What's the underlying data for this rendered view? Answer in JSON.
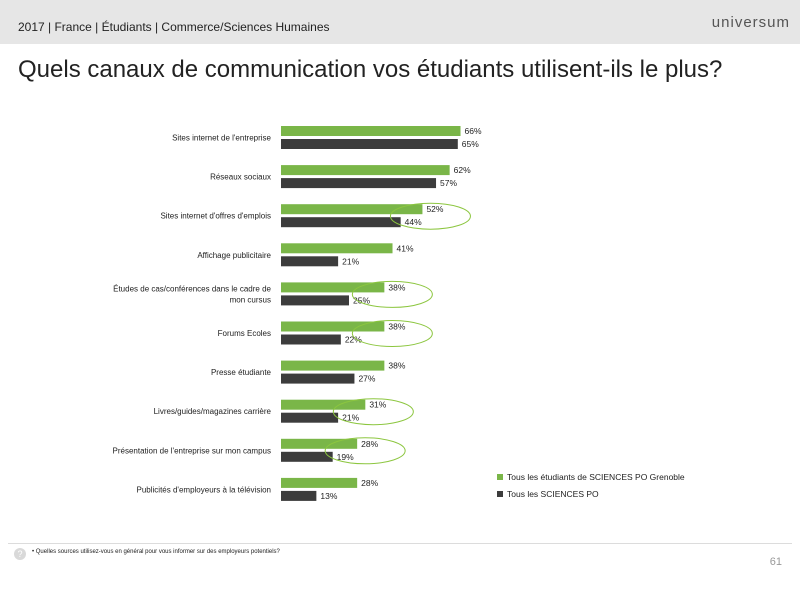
{
  "header": {
    "breadcrumb": "2017 | France | Étudiants | Commerce/Sciences Humaines",
    "logo": "universum"
  },
  "title": "Quels canaux de communication vos étudiants utilisent-ils le plus?",
  "footer": {
    "footnote": "•  Quelles sources utilisez-vous en général pour vous informer sur des employeurs potentiels?",
    "page_number": "61",
    "help_icon": "question-icon"
  },
  "chart_data": {
    "type": "bar",
    "orientation": "horizontal",
    "categories": [
      [
        "Sites internet de l'entreprise"
      ],
      [
        "Réseaux sociaux"
      ],
      [
        "Sites internet d'offres d'emplois"
      ],
      [
        "Affichage publicitaire"
      ],
      [
        "Études de cas/conférences dans le cadre de",
        "mon cursus"
      ],
      [
        "Forums Ecoles"
      ],
      [
        "Presse étudiante"
      ],
      [
        "Livres/guides/magazines carrière"
      ],
      [
        "Présentation de l'entreprise sur mon campus"
      ],
      [
        "Publicités d'employeurs à la télévision"
      ]
    ],
    "series": [
      {
        "name": "Tous les étudiants de SCIENCES PO Grenoble",
        "color": "#7ab648",
        "values": [
          66,
          62,
          52,
          41,
          38,
          38,
          38,
          31,
          28,
          28
        ]
      },
      {
        "name": "Tous les SCIENCES PO",
        "color": "#3c3c3c",
        "values": [
          65,
          57,
          44,
          21,
          25,
          22,
          27,
          21,
          19,
          13
        ]
      }
    ],
    "value_suffix": "%",
    "highlighted_categories": [
      2,
      4,
      5,
      7,
      8
    ],
    "highlight_color": "#8cc63f",
    "legend_position": "bottom-right",
    "xlim": [
      0,
      100
    ]
  }
}
